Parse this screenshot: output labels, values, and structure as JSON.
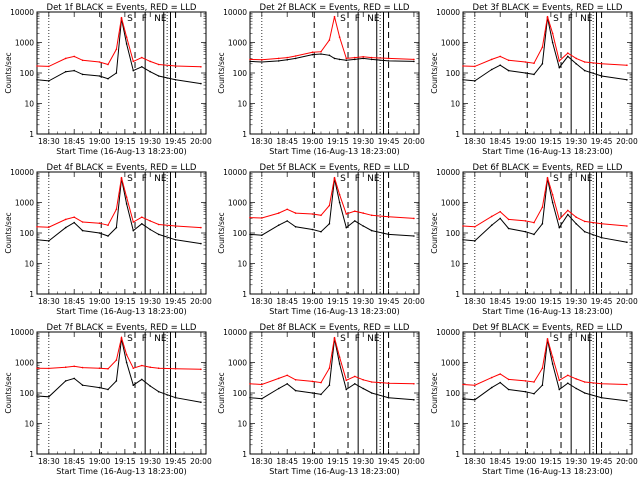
{
  "figure": {
    "ylabel": "Counts/sec",
    "xlabel": "Start Time (16-Aug-13 18:23:00)"
  },
  "chart_data": [
    {
      "type": "line",
      "title": "Det 1f BLACK = Events, RED = LLD",
      "xlabel": "Start Time (16-Aug-13 18:23:00)",
      "ylabel": "Counts/sec",
      "yscale": "log",
      "ylim": [
        1,
        10000
      ],
      "xticks": [
        "18:30",
        "18:45",
        "19:00",
        "19:15",
        "19:30",
        "19:45",
        "20:00"
      ],
      "yticks": [
        "1",
        "10",
        "100",
        "1000",
        "10000"
      ],
      "markers": [
        "S",
        "F",
        "NE"
      ],
      "x": [
        "18:23",
        "18:30",
        "18:40",
        "18:45",
        "18:50",
        "19:00",
        "19:05",
        "19:10",
        "19:13",
        "19:16",
        "19:20",
        "19:25",
        "19:30",
        "19:35",
        "19:45",
        "20:00"
      ],
      "series": [
        {
          "name": "Events",
          "color": "#000000",
          "values": [
            60,
            55,
            110,
            120,
            90,
            80,
            65,
            100,
            6000,
            900,
            120,
            160,
            110,
            80,
            60,
            45
          ]
        },
        {
          "name": "LLD",
          "color": "#ff0000",
          "values": [
            170,
            165,
            300,
            350,
            260,
            230,
            190,
            600,
            6500,
            1500,
            240,
            320,
            240,
            190,
            170,
            160
          ]
        }
      ]
    },
    {
      "type": "line",
      "title": "Det 2f BLACK = Events, RED = LLD",
      "xlabel": "Start Time (16-Aug-13 18:23:00)",
      "ylabel": "Counts/sec",
      "yscale": "log",
      "ylim": [
        1,
        10000
      ],
      "xticks": [
        "18:30",
        "18:45",
        "19:00",
        "19:15",
        "19:30",
        "19:45",
        "20:00"
      ],
      "yticks": [
        "1",
        "10",
        "100",
        "1000",
        "10000"
      ],
      "markers": [
        "S",
        "F",
        "NE"
      ],
      "x": [
        "18:23",
        "18:30",
        "18:40",
        "18:45",
        "18:50",
        "19:00",
        "19:05",
        "19:10",
        "19:13",
        "19:16",
        "19:20",
        "19:25",
        "19:30",
        "19:35",
        "19:45",
        "20:00"
      ],
      "series": [
        {
          "name": "Events",
          "color": "#000000",
          "values": [
            240,
            230,
            250,
            270,
            300,
            400,
            420,
            380,
            300,
            280,
            260,
            280,
            300,
            280,
            250,
            240
          ]
        },
        {
          "name": "LLD",
          "color": "#ff0000",
          "values": [
            280,
            270,
            300,
            320,
            360,
            480,
            500,
            1200,
            7000,
            1500,
            300,
            320,
            340,
            320,
            300,
            280
          ]
        }
      ]
    },
    {
      "type": "line",
      "title": "Det 3f BLACK = Events, RED = LLD",
      "xlabel": "Start Time (16-Aug-13 18:23:00)",
      "ylabel": "Counts/sec",
      "yscale": "log",
      "ylim": [
        1,
        10000
      ],
      "xticks": [
        "18:30",
        "18:45",
        "19:00",
        "19:15",
        "19:30",
        "19:45",
        "20:00"
      ],
      "yticks": [
        "1",
        "10",
        "100",
        "1000",
        "10000"
      ],
      "markers": [
        "S",
        "F",
        "NE"
      ],
      "x": [
        "18:23",
        "18:30",
        "18:40",
        "18:45",
        "18:50",
        "19:00",
        "19:05",
        "19:10",
        "19:13",
        "19:16",
        "19:20",
        "19:25",
        "19:30",
        "19:35",
        "19:45",
        "20:00"
      ],
      "series": [
        {
          "name": "Events",
          "color": "#000000",
          "values": [
            60,
            55,
            130,
            180,
            120,
            100,
            90,
            200,
            6500,
            1000,
            150,
            350,
            200,
            120,
            80,
            60
          ]
        },
        {
          "name": "LLD",
          "color": "#ff0000",
          "values": [
            170,
            165,
            280,
            350,
            260,
            230,
            210,
            700,
            7000,
            2000,
            250,
            450,
            300,
            230,
            200,
            180
          ]
        }
      ]
    },
    {
      "type": "line",
      "title": "Det 4f BLACK = Events, RED = LLD",
      "xlabel": "Start Time (16-Aug-13 18:23:00)",
      "ylabel": "Counts/sec",
      "yscale": "log",
      "ylim": [
        1,
        10000
      ],
      "xticks": [
        "18:30",
        "18:45",
        "19:00",
        "19:15",
        "19:30",
        "19:45",
        "20:00"
      ],
      "yticks": [
        "1",
        "10",
        "100",
        "1000",
        "10000"
      ],
      "markers": [
        "S",
        "F",
        "NE"
      ],
      "x": [
        "18:23",
        "18:30",
        "18:40",
        "18:45",
        "18:50",
        "19:00",
        "19:05",
        "19:10",
        "19:13",
        "19:16",
        "19:20",
        "19:25",
        "19:30",
        "19:35",
        "19:45",
        "20:00"
      ],
      "series": [
        {
          "name": "Events",
          "color": "#000000",
          "values": [
            60,
            55,
            150,
            220,
            120,
            100,
            80,
            150,
            6000,
            900,
            120,
            200,
            130,
            90,
            60,
            45
          ]
        },
        {
          "name": "LLD",
          "color": "#ff0000",
          "values": [
            160,
            155,
            280,
            330,
            230,
            210,
            180,
            600,
            6500,
            1500,
            230,
            330,
            250,
            190,
            170,
            150
          ]
        }
      ]
    },
    {
      "type": "line",
      "title": "Det 5f BLACK = Events, RED = LLD",
      "xlabel": "Start Time (16-Aug-13 18:23:00)",
      "ylabel": "Counts/sec",
      "yscale": "log",
      "ylim": [
        1,
        10000
      ],
      "xticks": [
        "18:30",
        "18:45",
        "19:00",
        "19:15",
        "19:30",
        "19:45",
        "20:00"
      ],
      "yticks": [
        "1",
        "10",
        "100",
        "1000",
        "10000"
      ],
      "markers": [
        "S",
        "F",
        "NE"
      ],
      "x": [
        "18:23",
        "18:30",
        "18:40",
        "18:45",
        "18:50",
        "19:00",
        "19:05",
        "19:10",
        "19:13",
        "19:16",
        "19:20",
        "19:25",
        "19:30",
        "19:35",
        "19:45",
        "20:00"
      ],
      "series": [
        {
          "name": "Events",
          "color": "#000000",
          "values": [
            90,
            85,
            180,
            250,
            160,
            130,
            110,
            200,
            6000,
            1000,
            150,
            250,
            170,
            120,
            90,
            80
          ]
        },
        {
          "name": "LLD",
          "color": "#ff0000",
          "values": [
            320,
            310,
            450,
            600,
            450,
            420,
            380,
            800,
            6500,
            1800,
            420,
            520,
            450,
            380,
            340,
            300
          ]
        }
      ]
    },
    {
      "type": "line",
      "title": "Det 6f BLACK = Events, RED = LLD",
      "xlabel": "Start Time (16-Aug-13 18:23:00)",
      "ylabel": "Counts/sec",
      "yscale": "log",
      "ylim": [
        1,
        10000
      ],
      "xticks": [
        "18:30",
        "18:45",
        "19:00",
        "19:15",
        "19:30",
        "19:45",
        "20:00"
      ],
      "yticks": [
        "1",
        "10",
        "100",
        "1000",
        "10000"
      ],
      "markers": [
        "S",
        "F",
        "NE"
      ],
      "x": [
        "18:23",
        "18:30",
        "18:40",
        "18:45",
        "18:50",
        "19:00",
        "19:05",
        "19:10",
        "19:13",
        "19:16",
        "19:20",
        "19:25",
        "19:30",
        "19:35",
        "19:45",
        "20:00"
      ],
      "series": [
        {
          "name": "Events",
          "color": "#000000",
          "values": [
            60,
            55,
            180,
            300,
            140,
            110,
            90,
            200,
            6000,
            1000,
            150,
            400,
            200,
            110,
            70,
            50
          ]
        },
        {
          "name": "LLD",
          "color": "#ff0000",
          "values": [
            170,
            160,
            350,
            500,
            280,
            250,
            220,
            700,
            6500,
            1800,
            280,
            550,
            330,
            240,
            200,
            170
          ]
        }
      ]
    },
    {
      "type": "line",
      "title": "Det 7f BLACK = Events, RED = LLD",
      "xlabel": "Start Time (16-Aug-13 18:23:00)",
      "ylabel": "Counts/sec",
      "yscale": "log",
      "ylim": [
        1,
        10000
      ],
      "xticks": [
        "18:30",
        "18:45",
        "19:00",
        "19:15",
        "19:30",
        "19:45",
        "20:00"
      ],
      "yticks": [
        "1",
        "10",
        "100",
        "1000",
        "10000"
      ],
      "markers": [
        "S",
        "F",
        "NE"
      ],
      "x": [
        "18:23",
        "18:30",
        "18:40",
        "18:45",
        "18:50",
        "19:00",
        "19:05",
        "19:10",
        "19:13",
        "19:16",
        "19:20",
        "19:25",
        "19:30",
        "19:35",
        "19:45",
        "20:00"
      ],
      "series": [
        {
          "name": "Events",
          "color": "#000000",
          "values": [
            80,
            75,
            250,
            300,
            180,
            150,
            130,
            250,
            6000,
            1000,
            180,
            280,
            170,
            110,
            70,
            50
          ]
        },
        {
          "name": "LLD",
          "color": "#ff0000",
          "values": [
            650,
            640,
            700,
            750,
            680,
            650,
            620,
            1200,
            6500,
            1800,
            650,
            800,
            700,
            650,
            620,
            600
          ]
        }
      ]
    },
    {
      "type": "line",
      "title": "Det 8f BLACK = Events, RED = LLD",
      "xlabel": "Start Time (16-Aug-13 18:23:00)",
      "ylabel": "Counts/sec",
      "yscale": "log",
      "ylim": [
        1,
        10000
      ],
      "xticks": [
        "18:30",
        "18:45",
        "19:00",
        "19:15",
        "19:30",
        "19:45",
        "20:00"
      ],
      "yticks": [
        "1",
        "10",
        "100",
        "1000",
        "10000"
      ],
      "markers": [
        "S",
        "F",
        "NE"
      ],
      "x": [
        "18:23",
        "18:30",
        "18:40",
        "18:45",
        "18:50",
        "19:00",
        "19:05",
        "19:10",
        "19:13",
        "19:16",
        "19:20",
        "19:25",
        "19:30",
        "19:35",
        "19:45",
        "20:00"
      ],
      "series": [
        {
          "name": "Events",
          "color": "#000000",
          "values": [
            70,
            65,
            140,
            200,
            120,
            100,
            90,
            180,
            6000,
            900,
            130,
            200,
            140,
            100,
            70,
            60
          ]
        },
        {
          "name": "LLD",
          "color": "#ff0000",
          "values": [
            200,
            190,
            300,
            380,
            270,
            240,
            220,
            650,
            6500,
            1500,
            260,
            350,
            270,
            230,
            210,
            200
          ]
        }
      ]
    },
    {
      "type": "line",
      "title": "Det 9f BLACK = Events, RED = LLD",
      "xlabel": "Start Time (16-Aug-13 18:23:00)",
      "ylabel": "Counts/sec",
      "yscale": "log",
      "ylim": [
        1,
        10000
      ],
      "xticks": [
        "18:30",
        "18:45",
        "19:00",
        "19:15",
        "19:30",
        "19:45",
        "20:00"
      ],
      "yticks": [
        "1",
        "10",
        "100",
        "1000",
        "10000"
      ],
      "markers": [
        "S",
        "F",
        "NE"
      ],
      "x": [
        "18:23",
        "18:30",
        "18:40",
        "18:45",
        "18:50",
        "19:00",
        "19:05",
        "19:10",
        "19:13",
        "19:16",
        "19:20",
        "19:25",
        "19:30",
        "19:35",
        "19:45",
        "20:00"
      ],
      "series": [
        {
          "name": "Events",
          "color": "#000000",
          "values": [
            65,
            60,
            150,
            220,
            130,
            110,
            95,
            180,
            5500,
            900,
            130,
            210,
            140,
            100,
            70,
            55
          ]
        },
        {
          "name": "LLD",
          "color": "#ff0000",
          "values": [
            190,
            180,
            320,
            420,
            280,
            250,
            230,
            650,
            6000,
            1500,
            260,
            380,
            290,
            230,
            200,
            190
          ]
        }
      ]
    }
  ]
}
